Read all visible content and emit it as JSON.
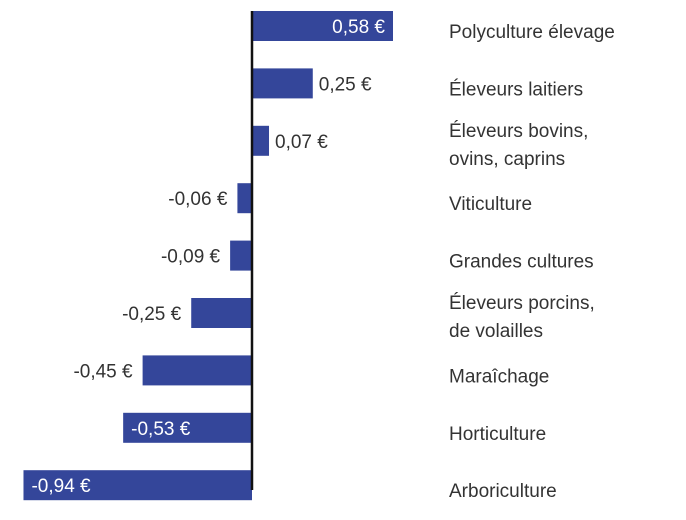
{
  "chart_data": {
    "type": "bar",
    "orientation": "horizontal",
    "categories": [
      [
        "Polyculture élevage"
      ],
      [
        "Éleveurs laitiers"
      ],
      [
        "Éleveurs bovins,",
        "ovins, caprins"
      ],
      [
        "Viticulture"
      ],
      [
        "Grandes cultures"
      ],
      [
        "Éleveurs porcins,",
        "de volailles"
      ],
      [
        "Maraîchage"
      ],
      [
        "Horticulture"
      ],
      [
        "Arboriculture"
      ]
    ],
    "values": [
      0.58,
      0.25,
      0.07,
      -0.06,
      -0.09,
      -0.25,
      -0.45,
      -0.53,
      -0.94
    ],
    "value_labels": [
      "0,58 €",
      "0,25 €",
      "0,07 €",
      "-0,06 €",
      "-0,09 €",
      "-0,25 €",
      "-0,45 €",
      "-0,53 €",
      "-0,94 €"
    ],
    "xlim": [
      -0.94,
      0.58
    ],
    "bar_color": "#34469a",
    "axis_color": "#111111",
    "grid": false,
    "legend": "none"
  }
}
